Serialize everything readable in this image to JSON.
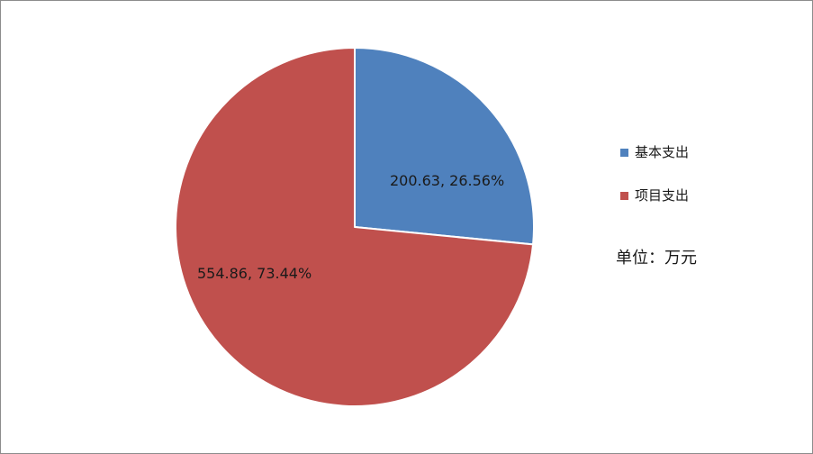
{
  "chart_data": {
    "type": "pie",
    "categories": [
      "基本支出",
      "项目支出"
    ],
    "values": [
      200.63,
      554.86
    ],
    "percentages": [
      "26.56%",
      "73.44%"
    ],
    "data_labels": [
      "200.63, 26.56%",
      "554.86, 73.44%"
    ],
    "colors": [
      "#4f81bd",
      "#c0504d"
    ],
    "legend_position": "right",
    "note": "单位：万元"
  }
}
